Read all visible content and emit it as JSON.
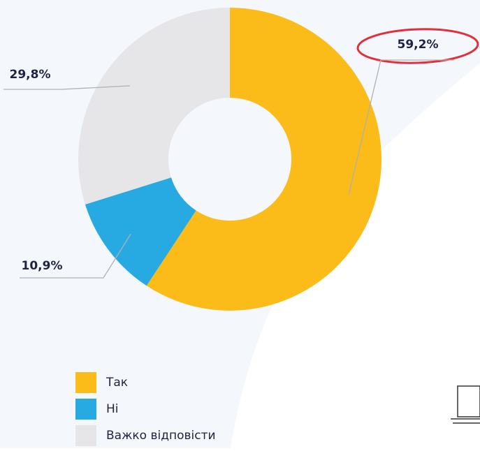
{
  "chart_data": {
    "type": "donut",
    "categories": [
      "Так",
      "Ні",
      "Важко відповісти"
    ],
    "values": [
      59.2,
      10.9,
      29.8
    ],
    "value_labels": [
      "59,2%",
      "10,9%",
      "29,8%"
    ],
    "colors": [
      "#fbbc1a",
      "#27aae1",
      "#e6e6e8"
    ]
  }
}
